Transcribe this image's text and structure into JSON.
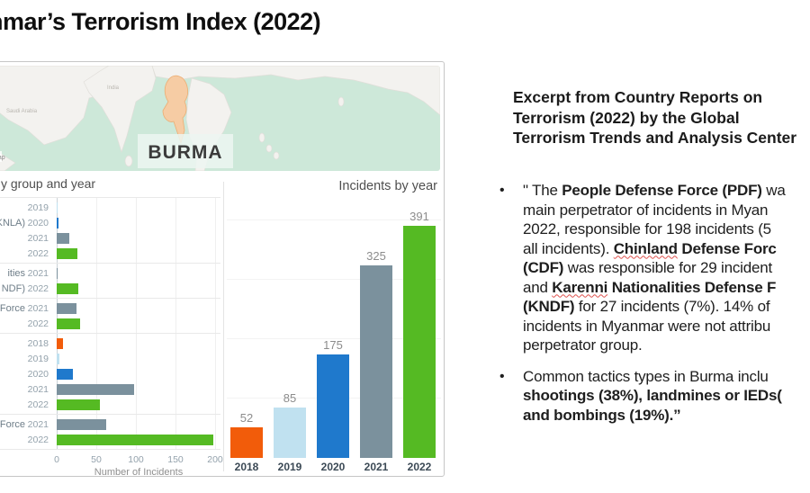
{
  "slide": {
    "title": "nmar’s Terrorism Index (2022)"
  },
  "map": {
    "country_label": "BURMA",
    "attribution": "treetMap",
    "region_labels": [
      "Saudi Arabia",
      "India"
    ],
    "sea_color": "#cde8d9",
    "land_color": "#f3f2ef",
    "highlight_color": "#f6cca4"
  },
  "colors": {
    "2018": "#f25c0a",
    "2019": "#c0e1f0",
    "2020": "#1f79cc",
    "2021": "#7b919d",
    "2022": "#55ba23"
  },
  "chart_data": [
    {
      "type": "bar",
      "orientation": "horizontal",
      "title": "y group and year",
      "xlabel": "Number of Incidents",
      "x_ticks": [
        0,
        50,
        100,
        150,
        200
      ],
      "xmax": 205,
      "groups": [
        {
          "rows": [
            {
              "label": "",
              "year": "2019",
              "value": 1
            },
            {
              "label": "(KNLA)",
              "year": "2020",
              "value": 2
            },
            {
              "label": "",
              "year": "2021",
              "value": 16
            },
            {
              "label": "",
              "year": "2022",
              "value": 26
            }
          ]
        },
        {
          "rows": [
            {
              "label": "ities",
              "year": "2021",
              "value": 1
            },
            {
              "label": "NDF)",
              "year": "2022",
              "value": 27
            }
          ]
        },
        {
          "rows": [
            {
              "label": "Force",
              "year": "2021",
              "value": 25
            },
            {
              "label": "",
              "year": "2022",
              "value": 29
            }
          ]
        },
        {
          "rows": [
            {
              "label": "",
              "year": "2018",
              "value": 8
            },
            {
              "label": "",
              "year": "2019",
              "value": 3
            },
            {
              "label": "",
              "year": "2020",
              "value": 20
            },
            {
              "label": "",
              "year": "2021",
              "value": 98
            },
            {
              "label": "",
              "year": "2022",
              "value": 55
            }
          ]
        },
        {
          "rows": [
            {
              "label": "Force",
              "year": "2021",
              "value": 62
            },
            {
              "label": "",
              "year": "2022",
              "value": 198
            }
          ]
        }
      ]
    },
    {
      "type": "bar",
      "title": "Incidents by year",
      "categories": [
        "2018",
        "2019",
        "2020",
        "2021",
        "2022"
      ],
      "values": [
        52,
        85,
        175,
        325,
        391
      ],
      "ylim": [
        0,
        420
      ],
      "data_labels": true,
      "grid_values": [
        100,
        200,
        300,
        400
      ]
    }
  ],
  "panel": {
    "bullet_char": "•",
    "header_lines": [
      "Excerpt from Country Reports on",
      "Terrorism (2022) by the Global",
      "Terrorism Trends and Analysis Center"
    ],
    "bullets": [
      {
        "lines": [
          [
            {
              "t": "\" The ",
              "b": false
            },
            {
              "t": "People Defense Force (PDF)",
              "b": true
            },
            {
              "t": " wa",
              "b": false
            }
          ],
          [
            {
              "t": "main perpetrator of incidents in Myan",
              "b": false
            }
          ],
          [
            {
              "t": "2022, responsible for 198 incidents (5",
              "b": false
            }
          ],
          [
            {
              "t": "all incidents). ",
              "b": false
            },
            {
              "t": "Chinland",
              "b": true,
              "sq": true
            },
            {
              "t": " Defense Forc",
              "b": true
            }
          ],
          [
            {
              "t": "(CDF)",
              "b": true
            },
            {
              "t": " was responsible for 29 incident",
              "b": false
            }
          ],
          [
            {
              "t": "and ",
              "b": false
            },
            {
              "t": "Karenni",
              "b": true,
              "sq": true
            },
            {
              "t": " Nationalities Defense F",
              "b": true
            }
          ],
          [
            {
              "t": "(KNDF)",
              "b": true
            },
            {
              "t": " for 27 incidents (7%). 14% of",
              "b": false
            }
          ],
          [
            {
              "t": "incidents in Myanmar were not attribu",
              "b": false
            }
          ],
          [
            {
              "t": "perpetrator group.",
              "b": false
            }
          ]
        ]
      },
      {
        "lines": [
          [
            {
              "t": "Common tactics types in Burma inclu",
              "b": false
            }
          ],
          [
            {
              "t": "shootings (38%), landmines or IEDs(",
              "b": true
            }
          ],
          [
            {
              "t": "and bombings (19%).”",
              "b": true
            }
          ]
        ]
      }
    ]
  }
}
